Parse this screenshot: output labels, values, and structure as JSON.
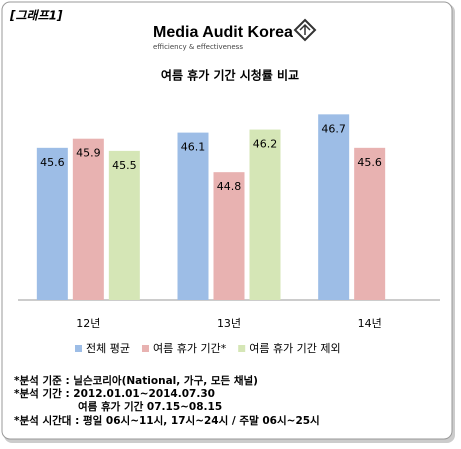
{
  "chart_data": {
    "type": "bar",
    "label": "[그래프1]",
    "logo": "Media Audit Korea",
    "logo_tagline": "efficiency & effectiveness",
    "title": "여름 휴가 기간 시청률 비교",
    "categories": [
      "12년",
      "13년",
      "14년"
    ],
    "series": [
      {
        "name": "전체 평균",
        "color": "#9dbde6",
        "values": [
          45.6,
          46.1,
          46.7
        ]
      },
      {
        "name": "여름 휴가 기간*",
        "color": "#e8b2b1",
        "values": [
          45.9,
          44.8,
          45.6
        ]
      },
      {
        "name": "여름 휴가 기간 제외",
        "color": "#d5e6b6",
        "values": [
          45.5,
          46.2,
          null
        ]
      }
    ],
    "ylim": [
      40.6,
      47.5
    ],
    "notes": [
      "*분석 기준 : 닐슨코리아(National, 가구, 모든 채널)",
      "*분석 기간 : 2012.01.01~2014.07.30",
      "여름 휴가 기간 07.15~08.15",
      "*분석 시간대 : 평일 06시~11시, 17시~24시 / 주말 06시~25시"
    ]
  }
}
